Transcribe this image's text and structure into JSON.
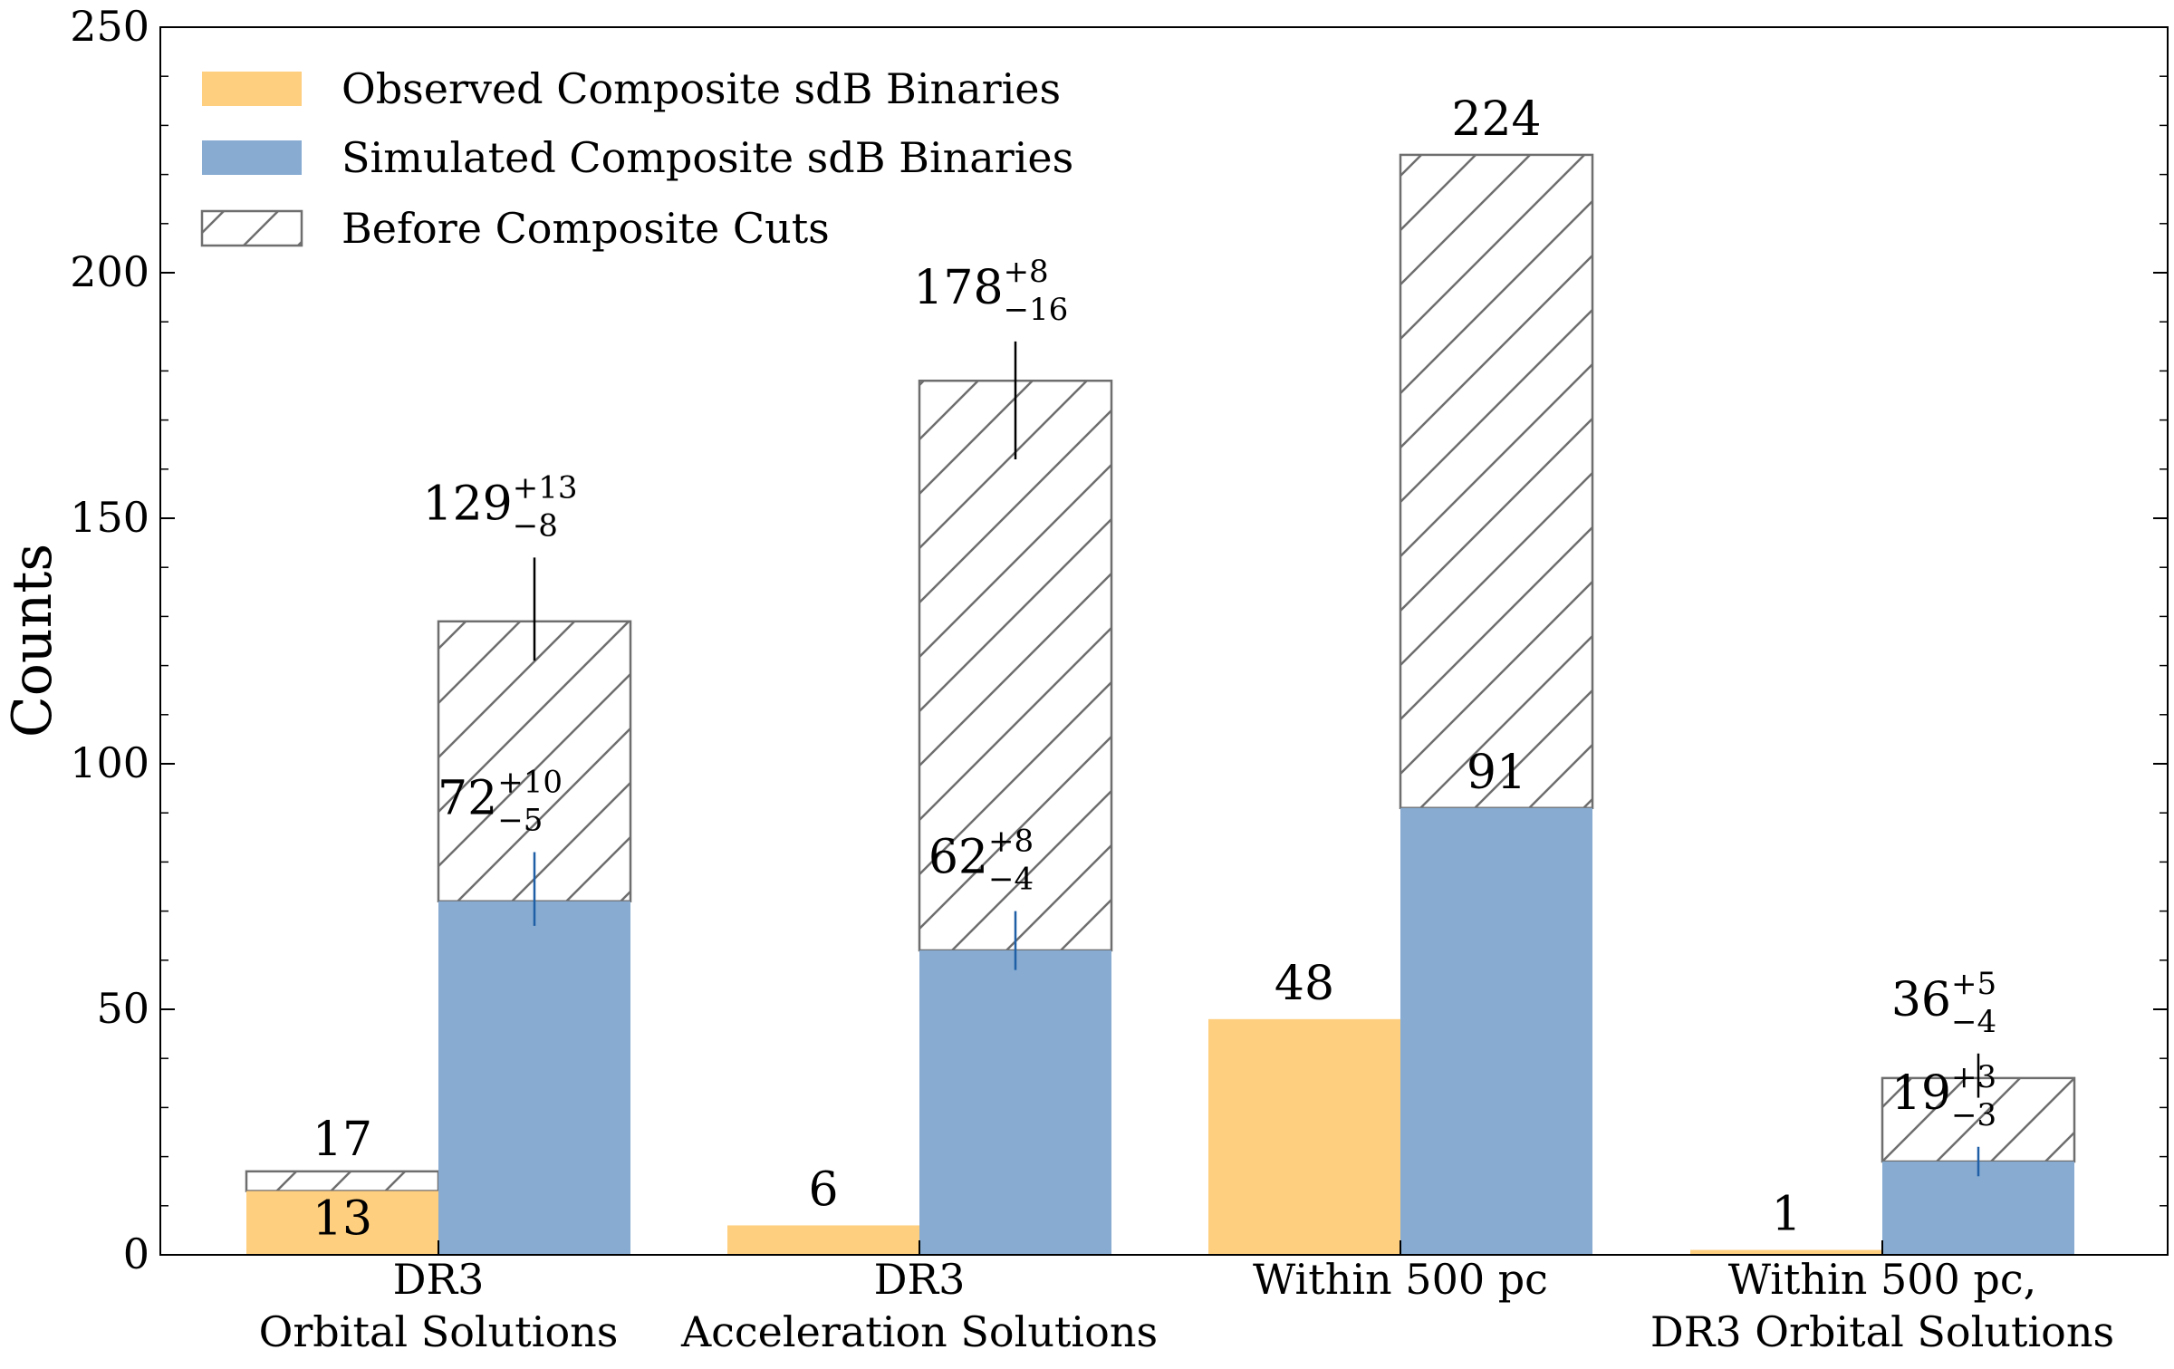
{
  "chart_data": {
    "type": "bar",
    "ylabel": "Counts",
    "xlabel": "",
    "ylim": [
      0,
      250
    ],
    "yticks": [
      "0",
      "50",
      "100",
      "150",
      "200",
      "250"
    ],
    "categories": [
      [
        "DR3",
        "Orbital Solutions"
      ],
      [
        "DR3",
        "Acceleration Solutions"
      ],
      [
        "Within 500 pc"
      ],
      [
        "Within 500 pc,",
        "DR3 Orbital Solutions"
      ]
    ],
    "legend_position": "top-left",
    "grid": false,
    "series": [
      {
        "name": "Observed Composite sdB Binaries",
        "color": "#fecf7f",
        "values": [
          13,
          6,
          48,
          1
        ],
        "labels": [
          {
            "main": "13"
          },
          {
            "main": "6"
          },
          {
            "main": "48"
          },
          {
            "main": "1"
          }
        ]
      },
      {
        "name": "Simulated Composite sdB Binaries",
        "color": "#87abd1",
        "values": [
          72,
          62,
          91,
          19
        ],
        "err_low": [
          5,
          4,
          0,
          3
        ],
        "err_high": [
          10,
          8,
          0,
          3
        ],
        "labels": [
          {
            "main": "72",
            "sup": "+10",
            "sub": "−5"
          },
          {
            "main": "62",
            "sup": "+8",
            "sub": "−4"
          },
          {
            "main": "91"
          },
          {
            "main": "19",
            "sup": "+3",
            "sub": "−3"
          }
        ]
      }
    ],
    "before_cuts": {
      "name": "Before Composite Cuts",
      "observed": [
        17,
        null,
        null,
        null
      ],
      "observed_labels": [
        {
          "main": "17"
        },
        null,
        null,
        null
      ],
      "simulated": [
        129,
        178,
        224,
        36
      ],
      "err_low": [
        8,
        16,
        0,
        4
      ],
      "err_high": [
        13,
        8,
        0,
        5
      ],
      "simulated_labels": [
        {
          "main": "129",
          "sup": "+13",
          "sub": "−8"
        },
        {
          "main": "178",
          "sup": "+8",
          "sub": "−16"
        },
        {
          "main": "224"
        },
        {
          "main": "36",
          "sup": "+5",
          "sub": "−4"
        }
      ]
    }
  }
}
